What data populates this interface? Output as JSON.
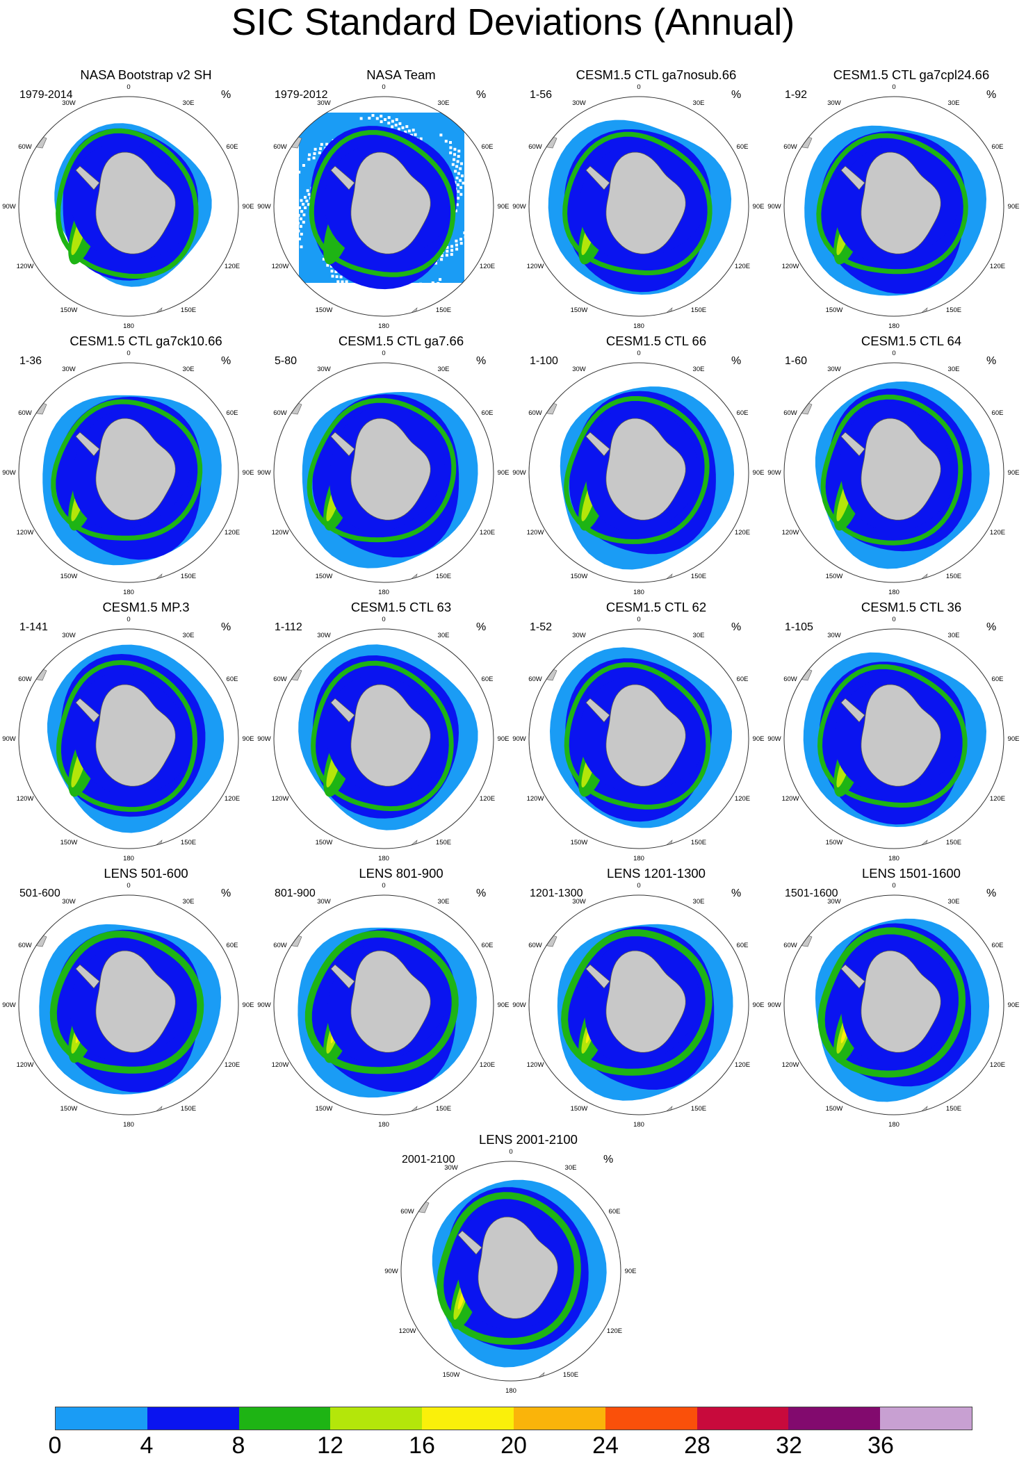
{
  "title": "SIC Standard Deviations (Annual)",
  "unit": "%",
  "lon_labels": [
    "0",
    "30E",
    "60E",
    "90E",
    "120E",
    "150E",
    "180",
    "150W",
    "120W",
    "90W",
    "60W",
    "30W"
  ],
  "panels": [
    {
      "title": "NASA Bootstrap v2 SH",
      "range": "1979-2014",
      "style": "obs"
    },
    {
      "title": "NASA Team",
      "range": "1979-2012",
      "style": "obs-team"
    },
    {
      "title": "CESM1.5 CTL ga7nosub.66",
      "range": "1-56",
      "style": "model"
    },
    {
      "title": "CESM1.5 CTL ga7cpl24.66",
      "range": "1-92",
      "style": "model"
    },
    {
      "title": "CESM1.5 CTL ga7ck10.66",
      "range": "1-36",
      "style": "model"
    },
    {
      "title": "CESM1.5 CTL ga7.66",
      "range": "5-80",
      "style": "model"
    },
    {
      "title": "CESM1.5 CTL 66",
      "range": "1-100",
      "style": "model"
    },
    {
      "title": "CESM1.5 CTL 64",
      "range": "1-60",
      "style": "model"
    },
    {
      "title": "CESM1.5 MP.3",
      "range": "1-141",
      "style": "model"
    },
    {
      "title": "CESM1.5 CTL 63",
      "range": "1-112",
      "style": "model"
    },
    {
      "title": "CESM1.5 CTL 62",
      "range": "1-52",
      "style": "model"
    },
    {
      "title": "CESM1.5 CTL 36",
      "range": "1-105",
      "style": "model"
    },
    {
      "title": "LENS 501-600",
      "range": "501-600",
      "style": "lens"
    },
    {
      "title": "LENS 801-900",
      "range": "801-900",
      "style": "lens"
    },
    {
      "title": "LENS 1201-1300",
      "range": "1201-1300",
      "style": "lens"
    },
    {
      "title": "LENS 1501-1600",
      "range": "1501-1600",
      "style": "lens"
    },
    {
      "title": "LENS 2001-2100",
      "range": "2001-2100",
      "style": "lens"
    }
  ],
  "colorbar": {
    "levels": [
      "0",
      "4",
      "8",
      "12",
      "16",
      "20",
      "24",
      "28",
      "32",
      "36"
    ],
    "colors": [
      "#1a9cf5",
      "#0a14f0",
      "#1eb414",
      "#b4e60a",
      "#faf00a",
      "#fab40a",
      "#fa500a",
      "#c80a3c",
      "#820a6e",
      "#c8a0d2"
    ]
  },
  "map_colors": {
    "land": "#c8c8c8",
    "coast": "#555555",
    "rim": "#333333"
  }
}
